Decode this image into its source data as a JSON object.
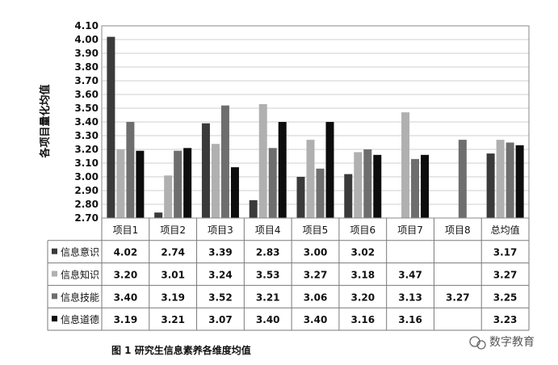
{
  "figure": {
    "caption": "图 1   研究生信息素养各维度均值",
    "watermark": "数字教育"
  },
  "chart_data": {
    "type": "bar",
    "title": "",
    "xlabel": "",
    "ylabel": "各项目量化均值",
    "ylim": [
      2.7,
      4.1
    ],
    "yticks": [
      "2.70",
      "2.80",
      "2.90",
      "3.00",
      "3.10",
      "3.20",
      "3.30",
      "3.40",
      "3.50",
      "3.60",
      "3.70",
      "3.80",
      "3.90",
      "4.00",
      "4.10"
    ],
    "categories": [
      "项目1",
      "项目2",
      "项目3",
      "项目4",
      "项目5",
      "项目6",
      "项目7",
      "项目8",
      "总均值"
    ],
    "series": [
      {
        "name": "信息意识",
        "color": "#3a3a3a",
        "values": [
          4.02,
          2.74,
          3.39,
          2.83,
          3.0,
          3.02,
          null,
          null,
          3.17
        ],
        "labels": [
          "4.02",
          "2.74",
          "3.39",
          "2.83",
          "3.00",
          "3.02",
          "",
          "",
          "3.17"
        ]
      },
      {
        "name": "信息知识",
        "color": "#b0b0b0",
        "values": [
          3.2,
          3.01,
          3.24,
          3.53,
          3.27,
          3.18,
          3.47,
          null,
          3.27
        ],
        "labels": [
          "3.20",
          "3.01",
          "3.24",
          "3.53",
          "3.27",
          "3.18",
          "3.47",
          "",
          "3.27"
        ]
      },
      {
        "name": "信息技能",
        "color": "#6e6e6e",
        "values": [
          3.4,
          3.19,
          3.52,
          3.21,
          3.06,
          3.2,
          3.13,
          3.27,
          3.25
        ],
        "labels": [
          "3.40",
          "3.19",
          "3.52",
          "3.21",
          "3.06",
          "3.20",
          "3.13",
          "3.27",
          "3.25"
        ]
      },
      {
        "name": "信息道德",
        "color": "#0d0d0d",
        "values": [
          3.19,
          3.21,
          3.07,
          3.4,
          3.4,
          3.16,
          3.16,
          null,
          3.23
        ],
        "labels": [
          "3.19",
          "3.21",
          "3.07",
          "3.40",
          "3.40",
          "3.16",
          "3.16",
          "",
          "3.23"
        ]
      }
    ],
    "grid": true,
    "legend": "data-table"
  }
}
